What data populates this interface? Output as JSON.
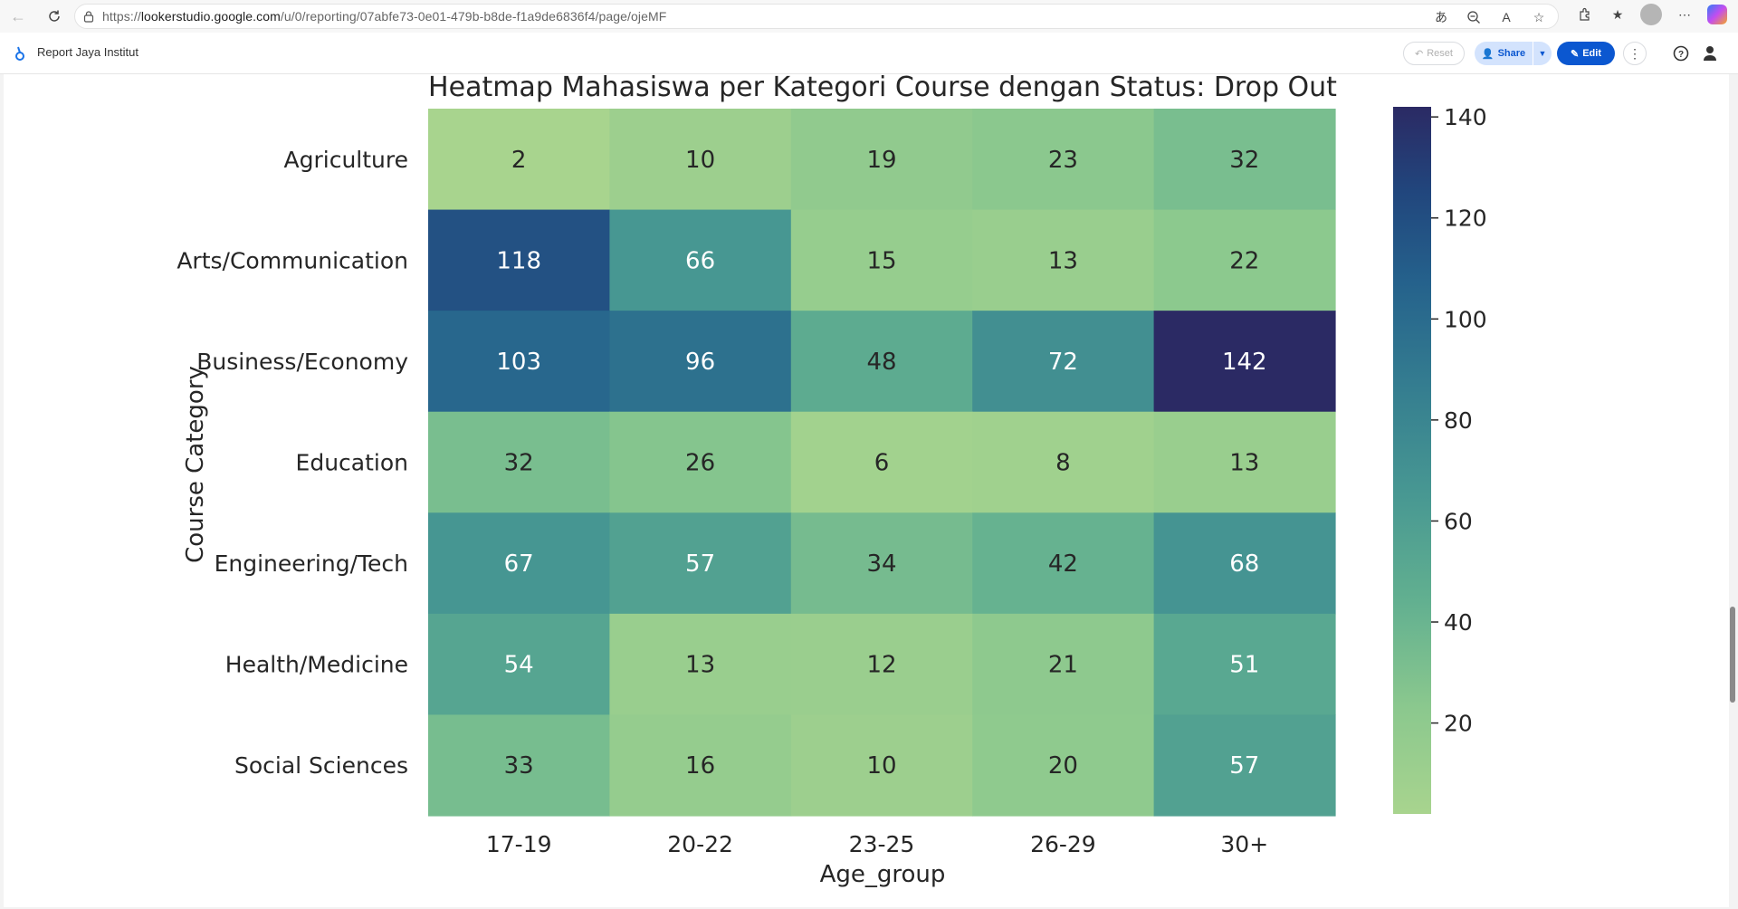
{
  "browser": {
    "url_prefix": "https://",
    "url_host": "lookerstudio.google.com",
    "url_path": "/u/0/reporting/07abfe73-0e01-479b-b8de-f1a9de6836f4/page/ojeMF"
  },
  "header": {
    "report_title": "Report Jaya Institut",
    "reset_label": "Reset",
    "share_label": "Share",
    "edit_label": "Edit"
  },
  "chart_data": {
    "type": "heatmap",
    "title": "Heatmap Mahasiswa per Kategori Course dengan Status: Drop Out",
    "xlabel": "Age_group",
    "ylabel": "Course Category",
    "x": [
      "17-19",
      "20-22",
      "23-25",
      "26-29",
      "30+"
    ],
    "y": [
      "Agriculture",
      "Arts/Communication",
      "Business/Economy",
      "Education",
      "Engineering/Tech",
      "Health/Medicine",
      "Social Sciences"
    ],
    "values": [
      [
        2,
        10,
        19,
        23,
        32
      ],
      [
        118,
        66,
        15,
        13,
        22
      ],
      [
        103,
        96,
        48,
        72,
        142
      ],
      [
        32,
        26,
        6,
        8,
        13
      ],
      [
        67,
        57,
        34,
        42,
        68
      ],
      [
        54,
        13,
        12,
        21,
        51
      ],
      [
        33,
        16,
        10,
        20,
        57
      ]
    ],
    "colorbar": {
      "range": [
        2,
        142
      ],
      "ticks": [
        20,
        40,
        60,
        80,
        100,
        120,
        140
      ],
      "colormap": "crest"
    }
  }
}
